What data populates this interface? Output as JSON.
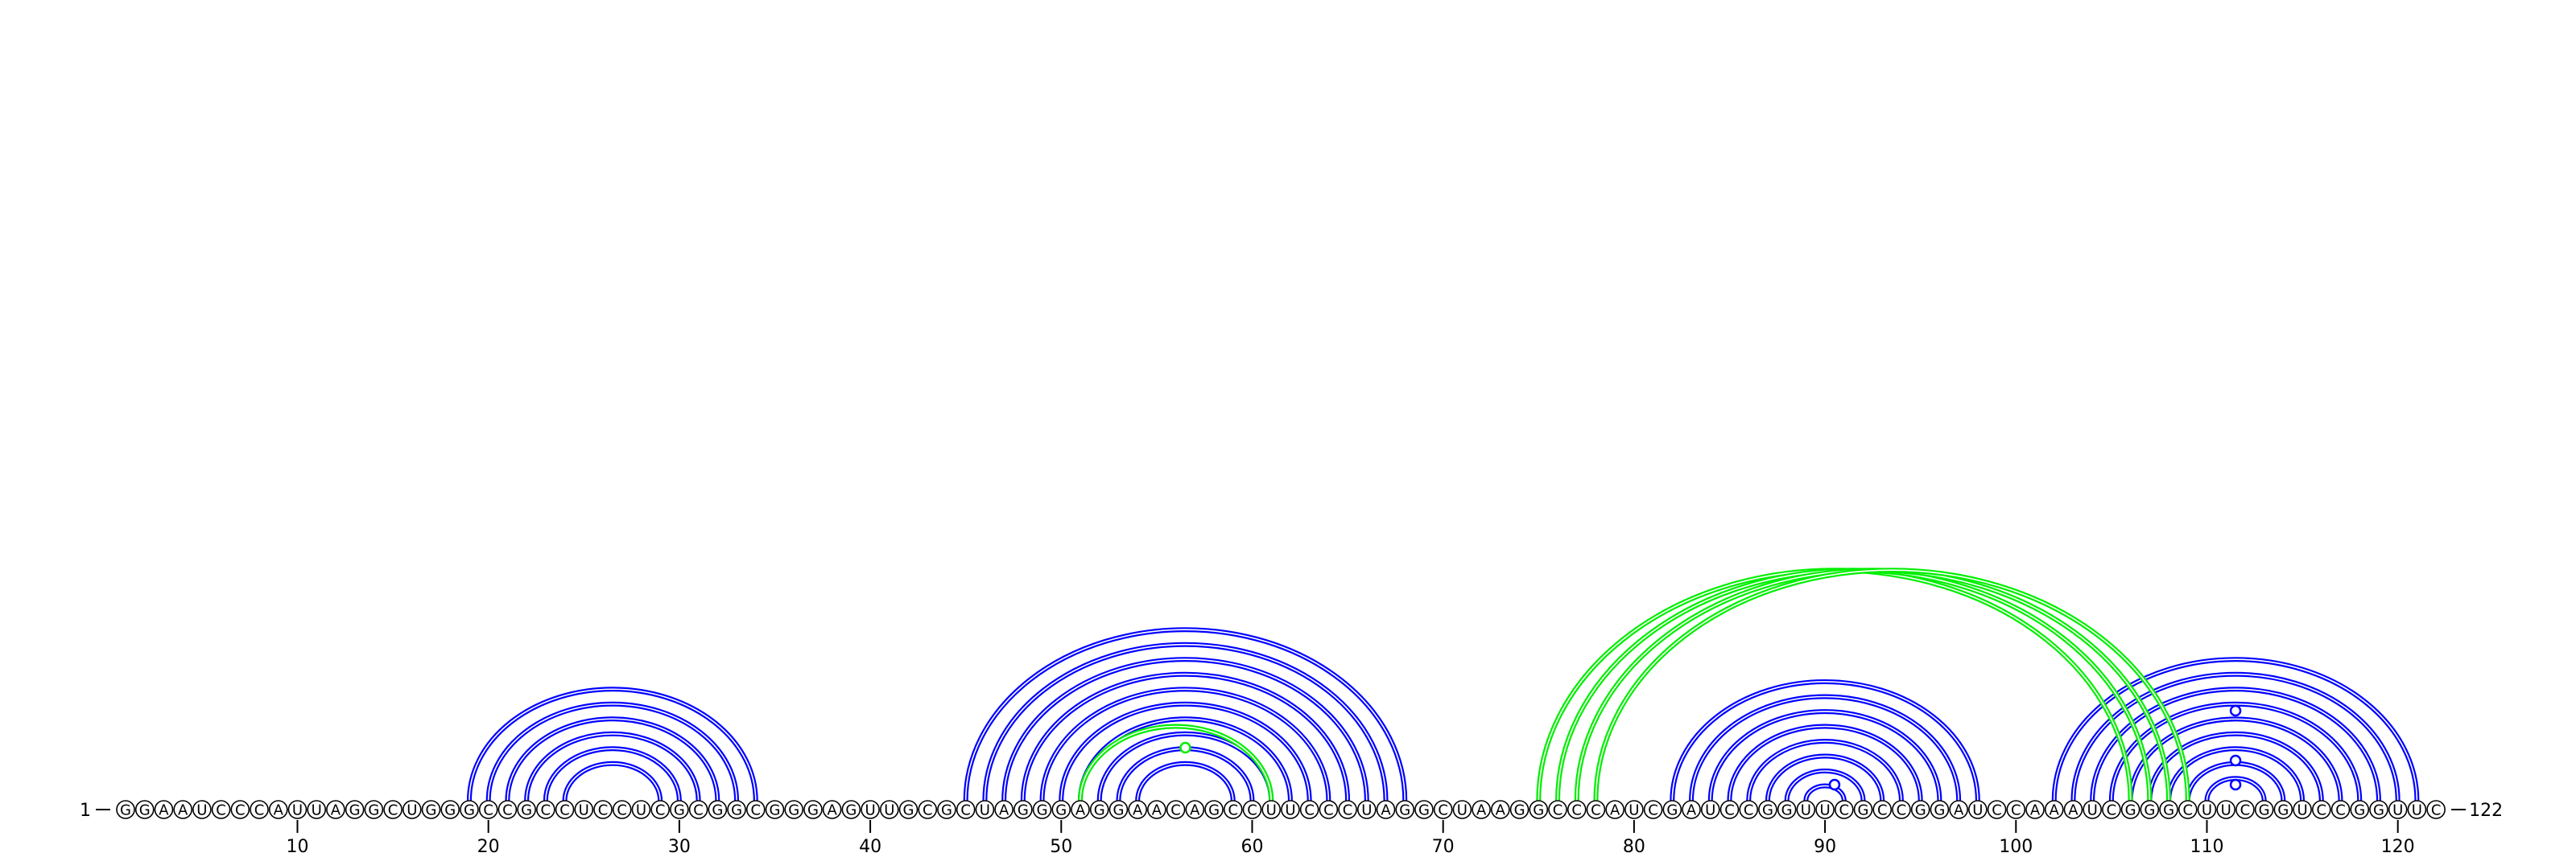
{
  "sequence": "GGAAUCCCAUUAGGCUGGGCCGCCUCCUCGCGGCGGGAGUUGCGCUAGGGAGGAACAGCCUUCCCUAGGCUAAGGCCCAUCGAUCCGGUUCGCCGGAUCCAAAUCGGGCUUCGGUCCGGUUC",
  "start_label": "1",
  "end_label": "122",
  "tick_labels": [
    "10",
    "20",
    "30",
    "40",
    "50",
    "60",
    "70",
    "80",
    "90",
    "100",
    "110",
    "120"
  ],
  "colors": {
    "primary_arc": "#0000ff",
    "secondary_arc": "#00ee00",
    "nucleotide_stroke": "#000000",
    "nucleotide_fill": "#ffffff",
    "background": "#ffffff"
  },
  "arc_sets": [
    {
      "color": "#0000ff",
      "pairs": [
        [
          19,
          34
        ],
        [
          20,
          33
        ],
        [
          21,
          32
        ],
        [
          22,
          31
        ],
        [
          23,
          30
        ],
        [
          24,
          29
        ],
        [
          45,
          68
        ],
        [
          46,
          67
        ],
        [
          47,
          66
        ],
        [
          48,
          65
        ],
        [
          49,
          64
        ],
        [
          50,
          63
        ],
        [
          51,
          62
        ],
        [
          52,
          61
        ],
        [
          53,
          60
        ],
        [
          54,
          59
        ],
        [
          82,
          98
        ],
        [
          83,
          97
        ],
        [
          84,
          96
        ],
        [
          85,
          95
        ],
        [
          86,
          94
        ],
        [
          87,
          93
        ],
        [
          88,
          92
        ],
        [
          89,
          91
        ],
        [
          102,
          121
        ],
        [
          103,
          120
        ],
        [
          104,
          119
        ],
        [
          105,
          118
        ],
        [
          106,
          117
        ],
        [
          107,
          116
        ],
        [
          108,
          115
        ],
        [
          109,
          114
        ],
        [
          110,
          113
        ]
      ]
    },
    {
      "color": "#00ee00",
      "pairs": [
        [
          75,
          106
        ],
        [
          76,
          107
        ],
        [
          77,
          108
        ],
        [
          78,
          109
        ],
        [
          51,
          61
        ]
      ]
    }
  ],
  "arc_markers": [
    {
      "position": 56.5,
      "color": "#00ee00"
    },
    {
      "position": 90.5,
      "color": "#0000ff"
    },
    {
      "position": 111.5,
      "color": "#0000ff"
    },
    {
      "position": 111.5,
      "color": "#0000ff"
    },
    {
      "position": 111.5,
      "color": "#0000ff"
    }
  ]
}
